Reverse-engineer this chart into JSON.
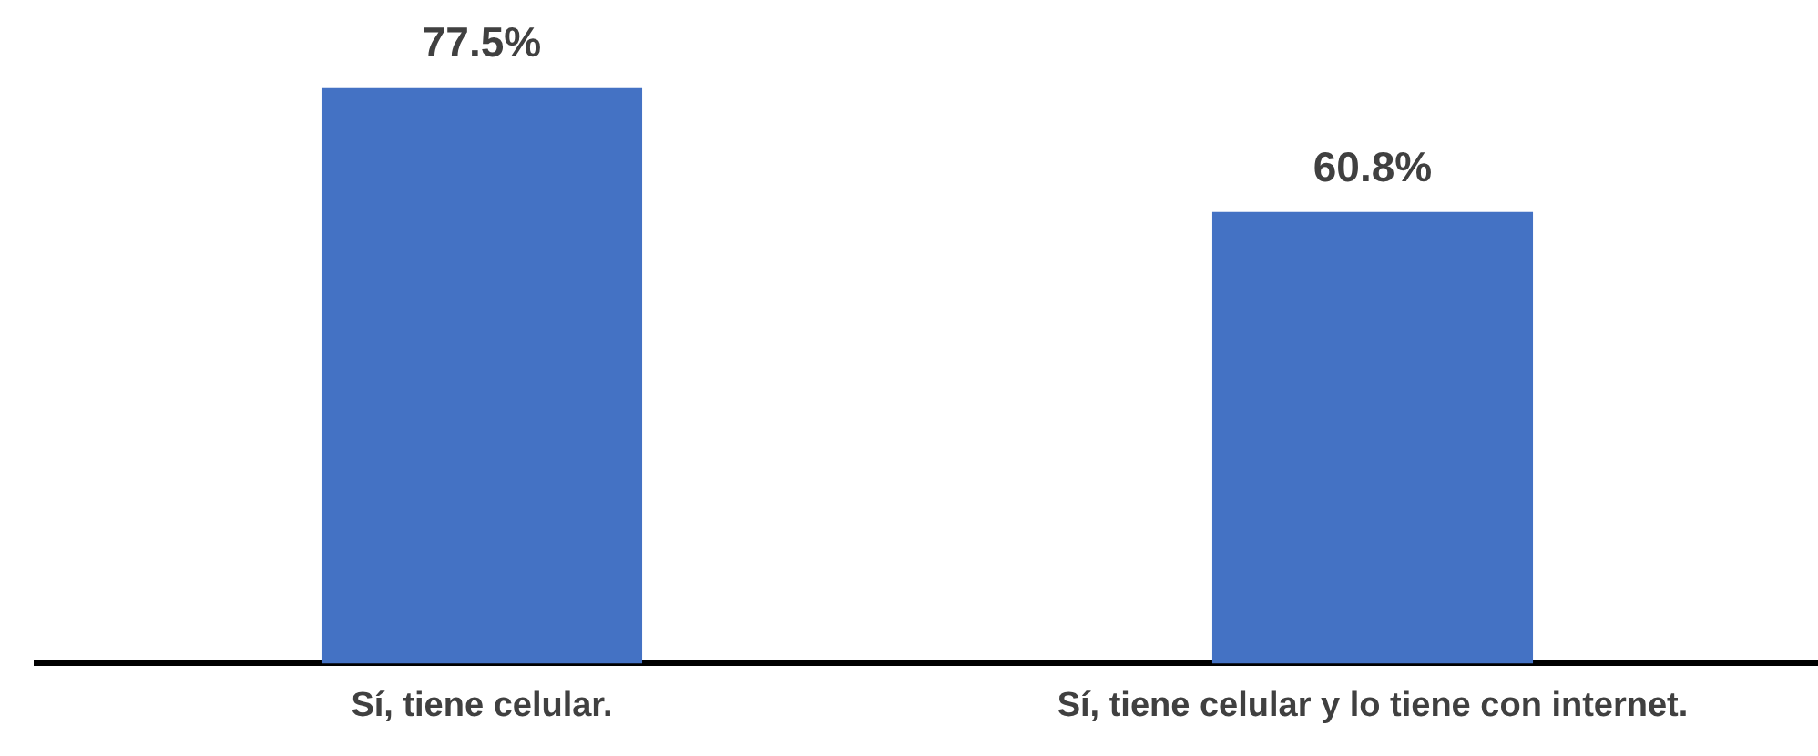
{
  "chart_data": {
    "type": "bar",
    "categories": [
      "Sí, tiene celular.",
      "Sí, tiene celular y lo tiene con internet."
    ],
    "values": [
      77.5,
      60.8
    ],
    "value_labels": [
      "77.5%",
      "60.8%"
    ],
    "color": "#4472c4",
    "relative": false
  }
}
